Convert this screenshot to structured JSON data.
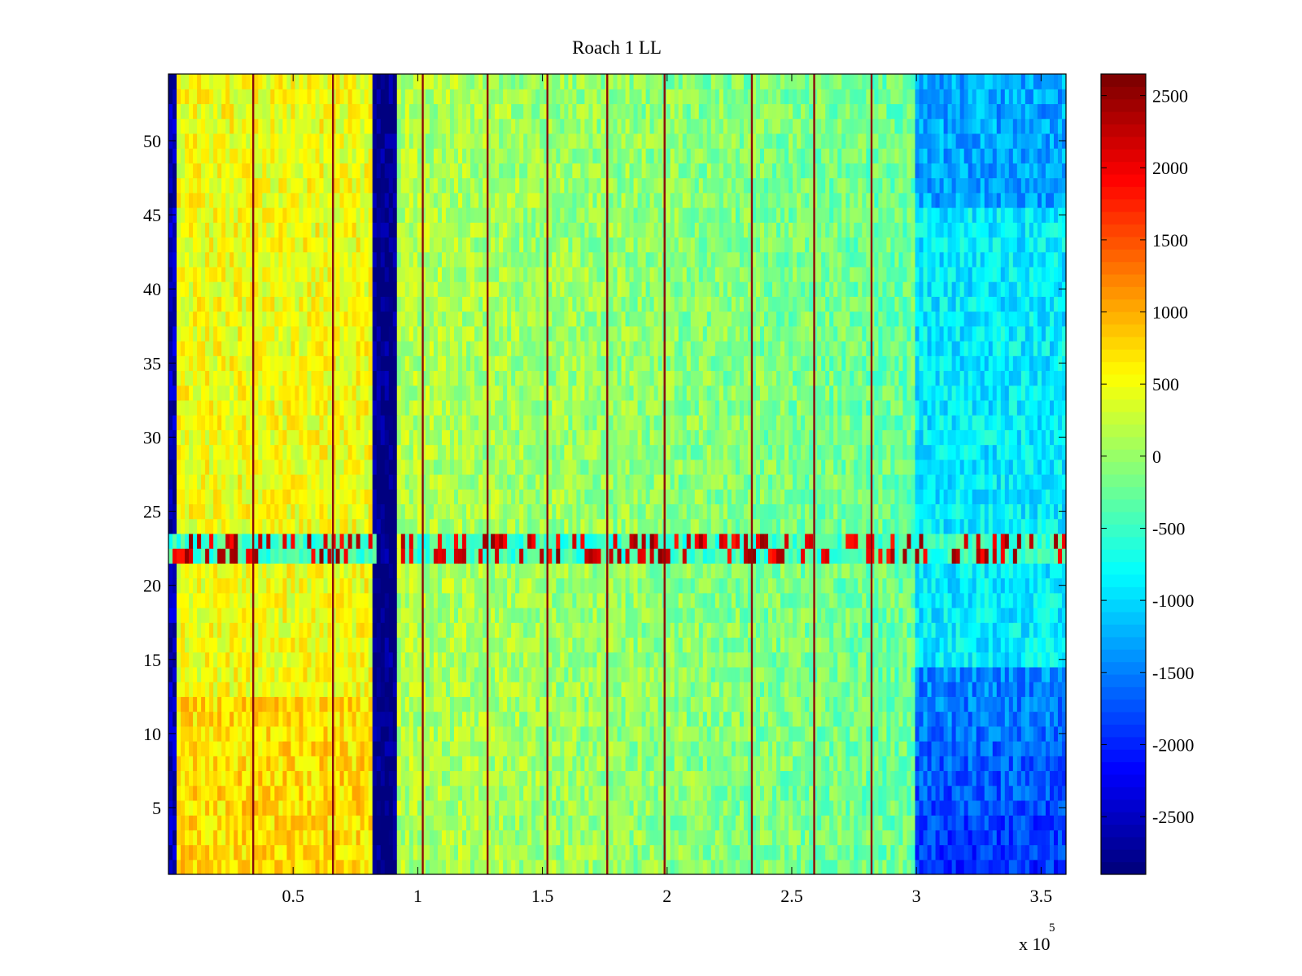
{
  "chart_data": {
    "type": "heatmap",
    "title": "Roach 1 LL",
    "xlabel": "",
    "ylabel": "",
    "x_multiplier_label": "x 10",
    "x_multiplier_exponent": "5",
    "xlim": [
      0,
      360000
    ],
    "ylim": [
      0.5,
      54.5
    ],
    "x_ticks": [
      50000,
      100000,
      150000,
      200000,
      250000,
      300000,
      350000
    ],
    "x_tick_labels": [
      "0.5",
      "1",
      "1.5",
      "2",
      "2.5",
      "3",
      "3.5"
    ],
    "y_ticks": [
      5,
      10,
      15,
      20,
      25,
      30,
      35,
      40,
      45,
      50
    ],
    "y_tick_labels": [
      "5",
      "10",
      "15",
      "20",
      "25",
      "30",
      "35",
      "40",
      "45",
      "50"
    ],
    "colormap": "jet",
    "clim": [
      -2900,
      2650
    ],
    "colorbar_ticks": [
      2500,
      2000,
      1500,
      1000,
      500,
      0,
      -500,
      -1000,
      -1500,
      -2000,
      -2500
    ],
    "colorbar_tick_labels": [
      "2500",
      "2000",
      "1500",
      "1000",
      "500",
      "0",
      "-500",
      "-1000",
      "-1500",
      "-2000",
      "-2500"
    ],
    "n_rows": 54,
    "vertical_lines_x": [
      34000,
      66000,
      102000,
      128000,
      152000,
      176000,
      199000,
      234000,
      259000,
      282000
    ],
    "dark_band_x": [
      82000,
      92000
    ],
    "left_edge_band_x": [
      0,
      3000
    ],
    "noisy_rows": [
      22,
      23
    ],
    "regions": [
      {
        "name": "left warm region",
        "x_range": [
          3000,
          82000
        ],
        "typical_value": 500
      },
      {
        "name": "dark vertical band",
        "x_range": [
          82000,
          92000
        ],
        "typical_value": -2900
      },
      {
        "name": "middle region",
        "x_range": [
          92000,
          300000
        ],
        "typical_value": 0
      },
      {
        "name": "right cool region upper rows",
        "x_range": [
          300000,
          360000
        ],
        "typical_value": -1000
      },
      {
        "name": "right cool region lower rows",
        "x_range": [
          300000,
          360000
        ],
        "typical_value": -2200
      }
    ]
  },
  "colors": {
    "axes_border": "#000000",
    "background": "#ffffff"
  }
}
